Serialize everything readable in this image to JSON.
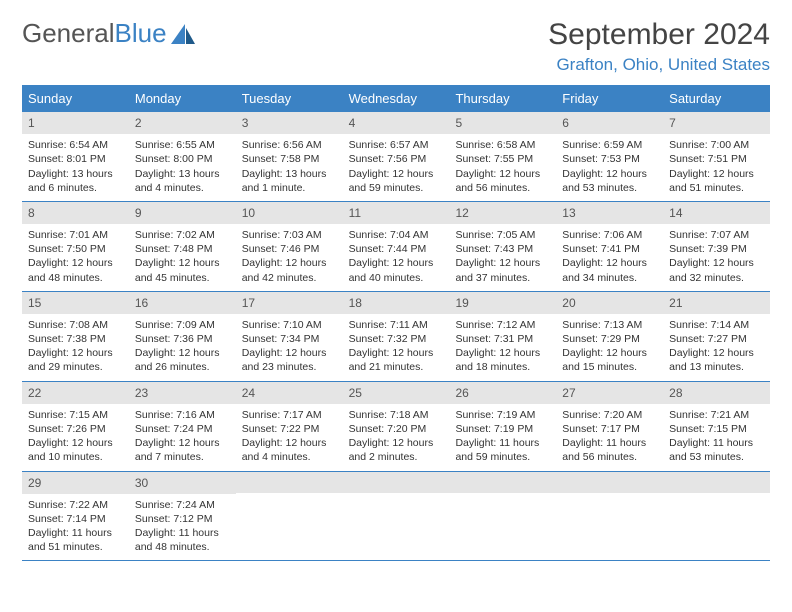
{
  "logo": {
    "text_gray": "General",
    "text_blue": "Blue"
  },
  "title": "September 2024",
  "location": "Grafton, Ohio, United States",
  "colors": {
    "header_bg": "#3b82c4",
    "daynum_bg": "#e5e5e5",
    "text": "#333333",
    "logo_gray": "#555555",
    "logo_blue": "#3b82c4"
  },
  "weekdays": [
    "Sunday",
    "Monday",
    "Tuesday",
    "Wednesday",
    "Thursday",
    "Friday",
    "Saturday"
  ],
  "weeks": [
    [
      {
        "n": "1",
        "sr": "Sunrise: 6:54 AM",
        "ss": "Sunset: 8:01 PM",
        "dl1": "Daylight: 13 hours",
        "dl2": "and 6 minutes."
      },
      {
        "n": "2",
        "sr": "Sunrise: 6:55 AM",
        "ss": "Sunset: 8:00 PM",
        "dl1": "Daylight: 13 hours",
        "dl2": "and 4 minutes."
      },
      {
        "n": "3",
        "sr": "Sunrise: 6:56 AM",
        "ss": "Sunset: 7:58 PM",
        "dl1": "Daylight: 13 hours",
        "dl2": "and 1 minute."
      },
      {
        "n": "4",
        "sr": "Sunrise: 6:57 AM",
        "ss": "Sunset: 7:56 PM",
        "dl1": "Daylight: 12 hours",
        "dl2": "and 59 minutes."
      },
      {
        "n": "5",
        "sr": "Sunrise: 6:58 AM",
        "ss": "Sunset: 7:55 PM",
        "dl1": "Daylight: 12 hours",
        "dl2": "and 56 minutes."
      },
      {
        "n": "6",
        "sr": "Sunrise: 6:59 AM",
        "ss": "Sunset: 7:53 PM",
        "dl1": "Daylight: 12 hours",
        "dl2": "and 53 minutes."
      },
      {
        "n": "7",
        "sr": "Sunrise: 7:00 AM",
        "ss": "Sunset: 7:51 PM",
        "dl1": "Daylight: 12 hours",
        "dl2": "and 51 minutes."
      }
    ],
    [
      {
        "n": "8",
        "sr": "Sunrise: 7:01 AM",
        "ss": "Sunset: 7:50 PM",
        "dl1": "Daylight: 12 hours",
        "dl2": "and 48 minutes."
      },
      {
        "n": "9",
        "sr": "Sunrise: 7:02 AM",
        "ss": "Sunset: 7:48 PM",
        "dl1": "Daylight: 12 hours",
        "dl2": "and 45 minutes."
      },
      {
        "n": "10",
        "sr": "Sunrise: 7:03 AM",
        "ss": "Sunset: 7:46 PM",
        "dl1": "Daylight: 12 hours",
        "dl2": "and 42 minutes."
      },
      {
        "n": "11",
        "sr": "Sunrise: 7:04 AM",
        "ss": "Sunset: 7:44 PM",
        "dl1": "Daylight: 12 hours",
        "dl2": "and 40 minutes."
      },
      {
        "n": "12",
        "sr": "Sunrise: 7:05 AM",
        "ss": "Sunset: 7:43 PM",
        "dl1": "Daylight: 12 hours",
        "dl2": "and 37 minutes."
      },
      {
        "n": "13",
        "sr": "Sunrise: 7:06 AM",
        "ss": "Sunset: 7:41 PM",
        "dl1": "Daylight: 12 hours",
        "dl2": "and 34 minutes."
      },
      {
        "n": "14",
        "sr": "Sunrise: 7:07 AM",
        "ss": "Sunset: 7:39 PM",
        "dl1": "Daylight: 12 hours",
        "dl2": "and 32 minutes."
      }
    ],
    [
      {
        "n": "15",
        "sr": "Sunrise: 7:08 AM",
        "ss": "Sunset: 7:38 PM",
        "dl1": "Daylight: 12 hours",
        "dl2": "and 29 minutes."
      },
      {
        "n": "16",
        "sr": "Sunrise: 7:09 AM",
        "ss": "Sunset: 7:36 PM",
        "dl1": "Daylight: 12 hours",
        "dl2": "and 26 minutes."
      },
      {
        "n": "17",
        "sr": "Sunrise: 7:10 AM",
        "ss": "Sunset: 7:34 PM",
        "dl1": "Daylight: 12 hours",
        "dl2": "and 23 minutes."
      },
      {
        "n": "18",
        "sr": "Sunrise: 7:11 AM",
        "ss": "Sunset: 7:32 PM",
        "dl1": "Daylight: 12 hours",
        "dl2": "and 21 minutes."
      },
      {
        "n": "19",
        "sr": "Sunrise: 7:12 AM",
        "ss": "Sunset: 7:31 PM",
        "dl1": "Daylight: 12 hours",
        "dl2": "and 18 minutes."
      },
      {
        "n": "20",
        "sr": "Sunrise: 7:13 AM",
        "ss": "Sunset: 7:29 PM",
        "dl1": "Daylight: 12 hours",
        "dl2": "and 15 minutes."
      },
      {
        "n": "21",
        "sr": "Sunrise: 7:14 AM",
        "ss": "Sunset: 7:27 PM",
        "dl1": "Daylight: 12 hours",
        "dl2": "and 13 minutes."
      }
    ],
    [
      {
        "n": "22",
        "sr": "Sunrise: 7:15 AM",
        "ss": "Sunset: 7:26 PM",
        "dl1": "Daylight: 12 hours",
        "dl2": "and 10 minutes."
      },
      {
        "n": "23",
        "sr": "Sunrise: 7:16 AM",
        "ss": "Sunset: 7:24 PM",
        "dl1": "Daylight: 12 hours",
        "dl2": "and 7 minutes."
      },
      {
        "n": "24",
        "sr": "Sunrise: 7:17 AM",
        "ss": "Sunset: 7:22 PM",
        "dl1": "Daylight: 12 hours",
        "dl2": "and 4 minutes."
      },
      {
        "n": "25",
        "sr": "Sunrise: 7:18 AM",
        "ss": "Sunset: 7:20 PM",
        "dl1": "Daylight: 12 hours",
        "dl2": "and 2 minutes."
      },
      {
        "n": "26",
        "sr": "Sunrise: 7:19 AM",
        "ss": "Sunset: 7:19 PM",
        "dl1": "Daylight: 11 hours",
        "dl2": "and 59 minutes."
      },
      {
        "n": "27",
        "sr": "Sunrise: 7:20 AM",
        "ss": "Sunset: 7:17 PM",
        "dl1": "Daylight: 11 hours",
        "dl2": "and 56 minutes."
      },
      {
        "n": "28",
        "sr": "Sunrise: 7:21 AM",
        "ss": "Sunset: 7:15 PM",
        "dl1": "Daylight: 11 hours",
        "dl2": "and 53 minutes."
      }
    ],
    [
      {
        "n": "29",
        "sr": "Sunrise: 7:22 AM",
        "ss": "Sunset: 7:14 PM",
        "dl1": "Daylight: 11 hours",
        "dl2": "and 51 minutes."
      },
      {
        "n": "30",
        "sr": "Sunrise: 7:24 AM",
        "ss": "Sunset: 7:12 PM",
        "dl1": "Daylight: 11 hours",
        "dl2": "and 48 minutes."
      },
      null,
      null,
      null,
      null,
      null
    ]
  ]
}
